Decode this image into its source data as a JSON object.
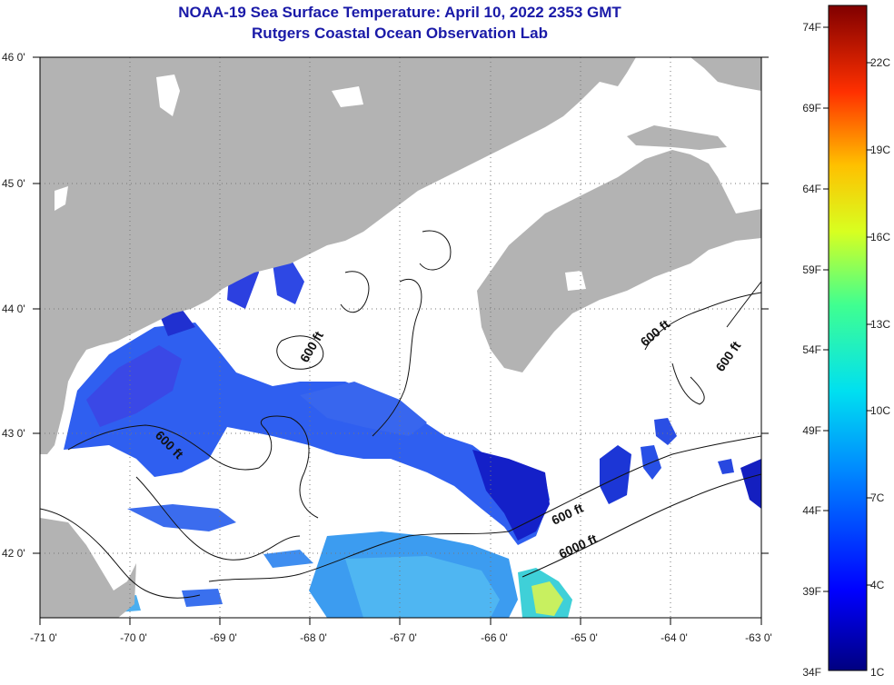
{
  "title": "NOAA-19 Sea Surface Temperature:  April 10, 2022 2353 GMT",
  "subtitle": "Rutgers Coastal Ocean Observation Lab",
  "map": {
    "lon_ticks": [
      "-71 0'",
      "-70 0'",
      "-69 0'",
      "-68 0'",
      "-67 0'",
      "-66 0'",
      "-65 0'",
      "-64 0'",
      "-63 0'"
    ],
    "lat_ticks": [
      "46 0'",
      "45 0'",
      "44 0'",
      "43 0'",
      "42 0'"
    ],
    "contour_labels": [
      "600 ft",
      "600 ft",
      "600 ft",
      "600 ft",
      "600 ft",
      "6000 ft"
    ],
    "colors": {
      "land": "#b3b3b3",
      "cloud": "#ffffff"
    }
  },
  "colorbar": {
    "fahrenheit": [
      "74F",
      "69F",
      "64F",
      "59F",
      "54F",
      "49F",
      "44F",
      "39F",
      "34F"
    ],
    "celsius": [
      "22C",
      "19C",
      "16C",
      "13C",
      "10C",
      "7C",
      "4C",
      "1C"
    ]
  }
}
